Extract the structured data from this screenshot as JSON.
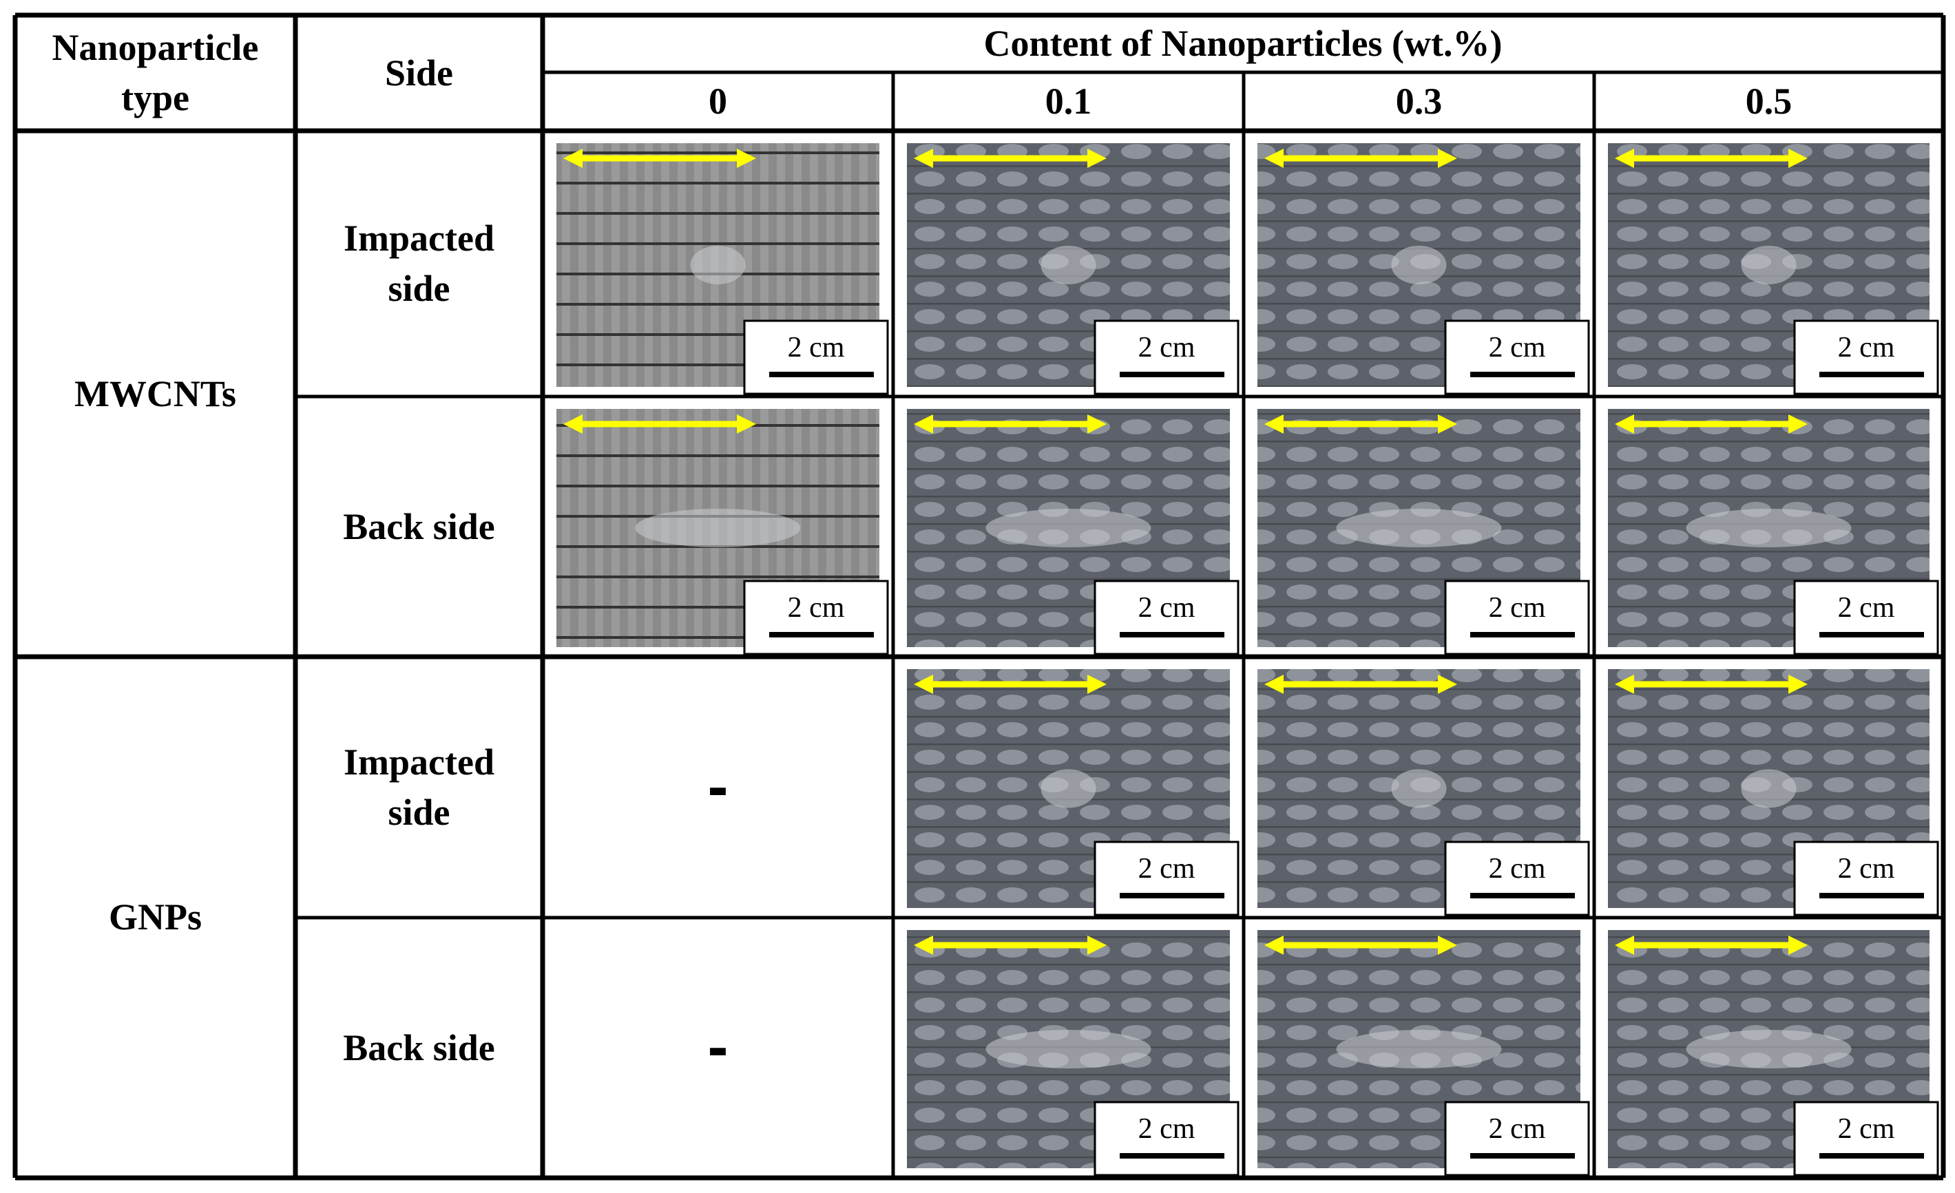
{
  "header": {
    "type_label": "Nanoparticle type",
    "side_label": "Side",
    "content_label": "Content of Nanoparticles (wt.%)",
    "contents": [
      "0",
      "0.1",
      "0.3",
      "0.5"
    ]
  },
  "groups": [
    {
      "type": "MWCNTs",
      "rows": [
        {
          "side": "Impacted side",
          "cells": [
            {
              "scale_bar": "2 cm"
            },
            {
              "scale_bar": "2 cm"
            },
            {
              "scale_bar": "2 cm"
            },
            {
              "scale_bar": "2 cm"
            }
          ]
        },
        {
          "side": "Back side",
          "cells": [
            {
              "scale_bar": "2 cm"
            },
            {
              "scale_bar": "2 cm"
            },
            {
              "scale_bar": "2 cm"
            },
            {
              "scale_bar": "2 cm"
            }
          ]
        }
      ]
    },
    {
      "type": "GNPs",
      "rows": [
        {
          "side": "Impacted side",
          "cells": [
            {
              "text": "-"
            },
            {
              "scale_bar": "2 cm"
            },
            {
              "scale_bar": "2 cm"
            },
            {
              "scale_bar": "2 cm"
            }
          ]
        },
        {
          "side": "Back side",
          "cells": [
            {
              "text": "-"
            },
            {
              "scale_bar": "2 cm"
            },
            {
              "scale_bar": "2 cm"
            },
            {
              "scale_bar": "2 cm"
            }
          ]
        }
      ]
    }
  ]
}
